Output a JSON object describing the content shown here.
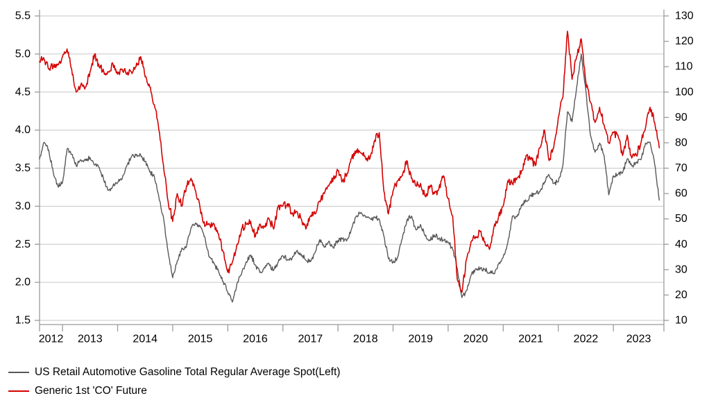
{
  "chart_data": {
    "type": "line",
    "title": "",
    "grid": "horizontal",
    "legend_position": "bottom-left",
    "x_domain": {
      "start": 2012.583,
      "end": 2023.917
    },
    "x_axis": {
      "tick_years": [
        2013,
        2014,
        2015,
        2016,
        2017,
        2018,
        2019,
        2020,
        2021,
        2022,
        2023
      ],
      "labels": [
        "2012",
        "2013",
        "2014",
        "2015",
        "2016",
        "2017",
        "2018",
        "2019",
        "2020",
        "2021",
        "2022",
        "2023"
      ]
    },
    "left_axis": {
      "min": 1.5,
      "max": 5.5,
      "tick_values": [
        1.5,
        2.0,
        2.5,
        3.0,
        3.5,
        4.0,
        4.5,
        5.0,
        5.5
      ],
      "tick_labels": [
        "1.5",
        "2.0",
        "2.5",
        "3.0",
        "3.5",
        "4.0",
        "4.5",
        "5.0",
        "5.5"
      ]
    },
    "right_axis": {
      "min": 10,
      "max": 130,
      "tick_values": [
        10,
        20,
        30,
        40,
        50,
        60,
        70,
        80,
        90,
        100,
        110,
        120,
        130
      ],
      "tick_labels": [
        "10",
        "20",
        "30",
        "40",
        "50",
        "60",
        "70",
        "80",
        "90",
        "100",
        "110",
        "120",
        "130"
      ]
    },
    "colors": {
      "gasoline_line": "#58585a",
      "future_line": "#d40000",
      "gridline": "#c6c6c6",
      "axis": "#9b9b9b",
      "text": "#000000"
    },
    "sampling": "monthly, x starts Aug-2012, step 1/12 year",
    "texture": {
      "gasoline_amp": 0.035,
      "future_amp": 1.7,
      "subdivisions": 7
    },
    "series": [
      {
        "name": "US Retail Automotive Gasoline Total Regular Average Spot(Left)",
        "axis": "left",
        "color": "#58585a",
        "values": [
          3.62,
          3.84,
          3.74,
          3.44,
          3.26,
          3.31,
          3.75,
          3.68,
          3.53,
          3.61,
          3.6,
          3.64,
          3.54,
          3.51,
          3.34,
          3.21,
          3.27,
          3.31,
          3.36,
          3.53,
          3.65,
          3.67,
          3.68,
          3.59,
          3.45,
          3.39,
          3.12,
          2.85,
          2.4,
          2.06,
          2.28,
          2.45,
          2.47,
          2.72,
          2.78,
          2.74,
          2.6,
          2.33,
          2.25,
          2.14,
          2.01,
          1.87,
          1.74,
          1.98,
          2.11,
          2.27,
          2.36,
          2.23,
          2.13,
          2.2,
          2.24,
          2.16,
          2.27,
          2.35,
          2.3,
          2.31,
          2.41,
          2.37,
          2.29,
          2.27,
          2.39,
          2.56,
          2.46,
          2.54,
          2.45,
          2.55,
          2.57,
          2.56,
          2.71,
          2.87,
          2.92,
          2.86,
          2.84,
          2.85,
          2.83,
          2.61,
          2.31,
          2.26,
          2.33,
          2.57,
          2.81,
          2.87,
          2.69,
          2.76,
          2.61,
          2.56,
          2.62,
          2.58,
          2.55,
          2.53,
          2.43,
          2.18,
          1.8,
          1.89,
          2.09,
          2.18,
          2.18,
          2.17,
          2.13,
          2.11,
          2.24,
          2.33,
          2.52,
          2.87,
          2.86,
          3.02,
          3.07,
          3.14,
          3.16,
          3.19,
          3.32,
          3.41,
          3.3,
          3.32,
          3.54,
          4.24,
          4.11,
          4.56,
          5.0,
          4.52,
          3.93,
          3.71,
          3.83,
          3.66,
          3.15,
          3.4,
          3.42,
          3.44,
          3.62,
          3.53,
          3.57,
          3.61,
          3.83,
          3.84,
          3.55,
          3.08
        ]
      },
      {
        "name": "Generic 1st 'CO' Future",
        "axis": "right",
        "color": "#d40000",
        "values": [
          112,
          113,
          109,
          110,
          111,
          114,
          117,
          109,
          100,
          103,
          102,
          108,
          115,
          110,
          108,
          108,
          111,
          107,
          109,
          107,
          108,
          110,
          114,
          106,
          102,
          95,
          85,
          71,
          57,
          49,
          60,
          55,
          63,
          66,
          61,
          54,
          47,
          48,
          48,
          44,
          37,
          29,
          33,
          40,
          46,
          48,
          49,
          43,
          48,
          47,
          50,
          46,
          55,
          55,
          56,
          52,
          53,
          50,
          46,
          51,
          52,
          57,
          60,
          63,
          66,
          69,
          65,
          68,
          74,
          77,
          76,
          74,
          74,
          81,
          84,
          61,
          52,
          61,
          65,
          67,
          73,
          66,
          63,
          64,
          59,
          63,
          60,
          62,
          67,
          58,
          51,
          26,
          21,
          34,
          41,
          43,
          45,
          41,
          38,
          47,
          51,
          55,
          65,
          64,
          66,
          69,
          75,
          74,
          71,
          78,
          85,
          73,
          78,
          90,
          98,
          124,
          105,
          114,
          121,
          104,
          96,
          88,
          94,
          87,
          80,
          84,
          83,
          75,
          83,
          74,
          75,
          80,
          86,
          94,
          88,
          78
        ]
      }
    ]
  },
  "legend": {
    "gasoline_label": "US Retail Automotive Gasoline Total Regular Average Spot(Left)",
    "future_label": "Generic 1st 'CO' Future"
  }
}
